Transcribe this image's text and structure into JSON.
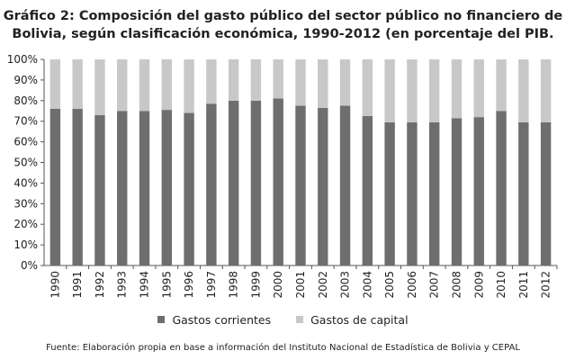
{
  "title_line1": "Gráfico 2: Composición del gasto público del sector público no financiero de",
  "title_line2": "Bolivia, según clasificación económica, 1990-2012 (en porcentaje del PIB.",
  "source": "Fuente: Elaboración propia en base a información del Instituto Nacional de Estadística de Bolivia y CEPAL",
  "colors": {
    "corrientes": "#6e6e6e",
    "capital": "#c8c8c8",
    "axis": "#555555"
  },
  "chart_data": {
    "type": "bar",
    "stacked": true,
    "categories": [
      "1990",
      "1991",
      "1992",
      "1993",
      "1994",
      "1995",
      "1996",
      "1997",
      "1998",
      "1999",
      "2000",
      "2001",
      "2002",
      "2003",
      "2004",
      "2005",
      "2006",
      "2007",
      "2008",
      "2009",
      "2010",
      "2011",
      "2012"
    ],
    "series": [
      {
        "name": "Gastos corrientes",
        "values": [
          76,
          76,
          73,
          75,
          75,
          75.5,
          74,
          78.5,
          80,
          80,
          81,
          77.5,
          76.5,
          77.5,
          72.5,
          69.5,
          69.5,
          69.5,
          71.5,
          72,
          75,
          69.5,
          69.5
        ]
      },
      {
        "name": "Gastos de capital",
        "values": [
          24,
          24,
          27,
          25,
          25,
          24.5,
          26,
          21.5,
          20,
          20,
          19,
          22.5,
          23.5,
          22.5,
          27.5,
          30.5,
          30.5,
          30.5,
          28.5,
          28,
          25,
          30.5,
          30.5
        ]
      }
    ],
    "yticks": [
      "0%",
      "10%",
      "20%",
      "30%",
      "40%",
      "50%",
      "60%",
      "70%",
      "80%",
      "90%",
      "100%"
    ],
    "ylim": [
      0,
      100
    ],
    "grid": false,
    "legend": "bottom"
  }
}
